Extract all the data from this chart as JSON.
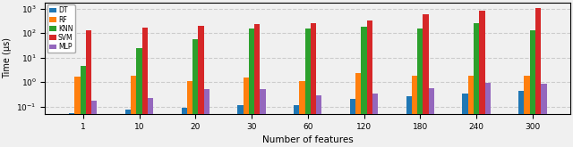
{
  "categories": [
    1,
    10,
    20,
    30,
    60,
    120,
    180,
    240,
    300
  ],
  "models": [
    "DT",
    "RF",
    "KNN",
    "SVM",
    "MLP"
  ],
  "colors": [
    "#1f77b4",
    "#ff7f0e",
    "#2ca02c",
    "#d62728",
    "#9467bd"
  ],
  "values": {
    "DT": [
      0.055,
      0.075,
      0.09,
      0.115,
      0.115,
      0.2,
      0.26,
      0.33,
      0.43
    ],
    "RF": [
      1.7,
      1.75,
      1.1,
      1.55,
      1.1,
      2.3,
      1.75,
      1.75,
      1.8
    ],
    "KNN": [
      4.5,
      25.0,
      55.0,
      160.0,
      155.0,
      175.0,
      155.0,
      260.0,
      130.0
    ],
    "SVM": [
      130.0,
      165.0,
      195.0,
      230.0,
      260.0,
      320.0,
      600.0,
      850.0,
      1100.0
    ],
    "MLP": [
      0.17,
      0.22,
      0.5,
      0.5,
      0.28,
      0.33,
      0.58,
      0.92,
      0.85
    ]
  },
  "ylabel": "Time (μs)",
  "xlabel": "Number of features",
  "yticks": [
    0.1,
    1.0,
    10.0,
    100.0,
    1000.0
  ],
  "background_color": "#f0f0f0",
  "figsize": [
    6.4,
    1.65
  ],
  "dpi": 100
}
